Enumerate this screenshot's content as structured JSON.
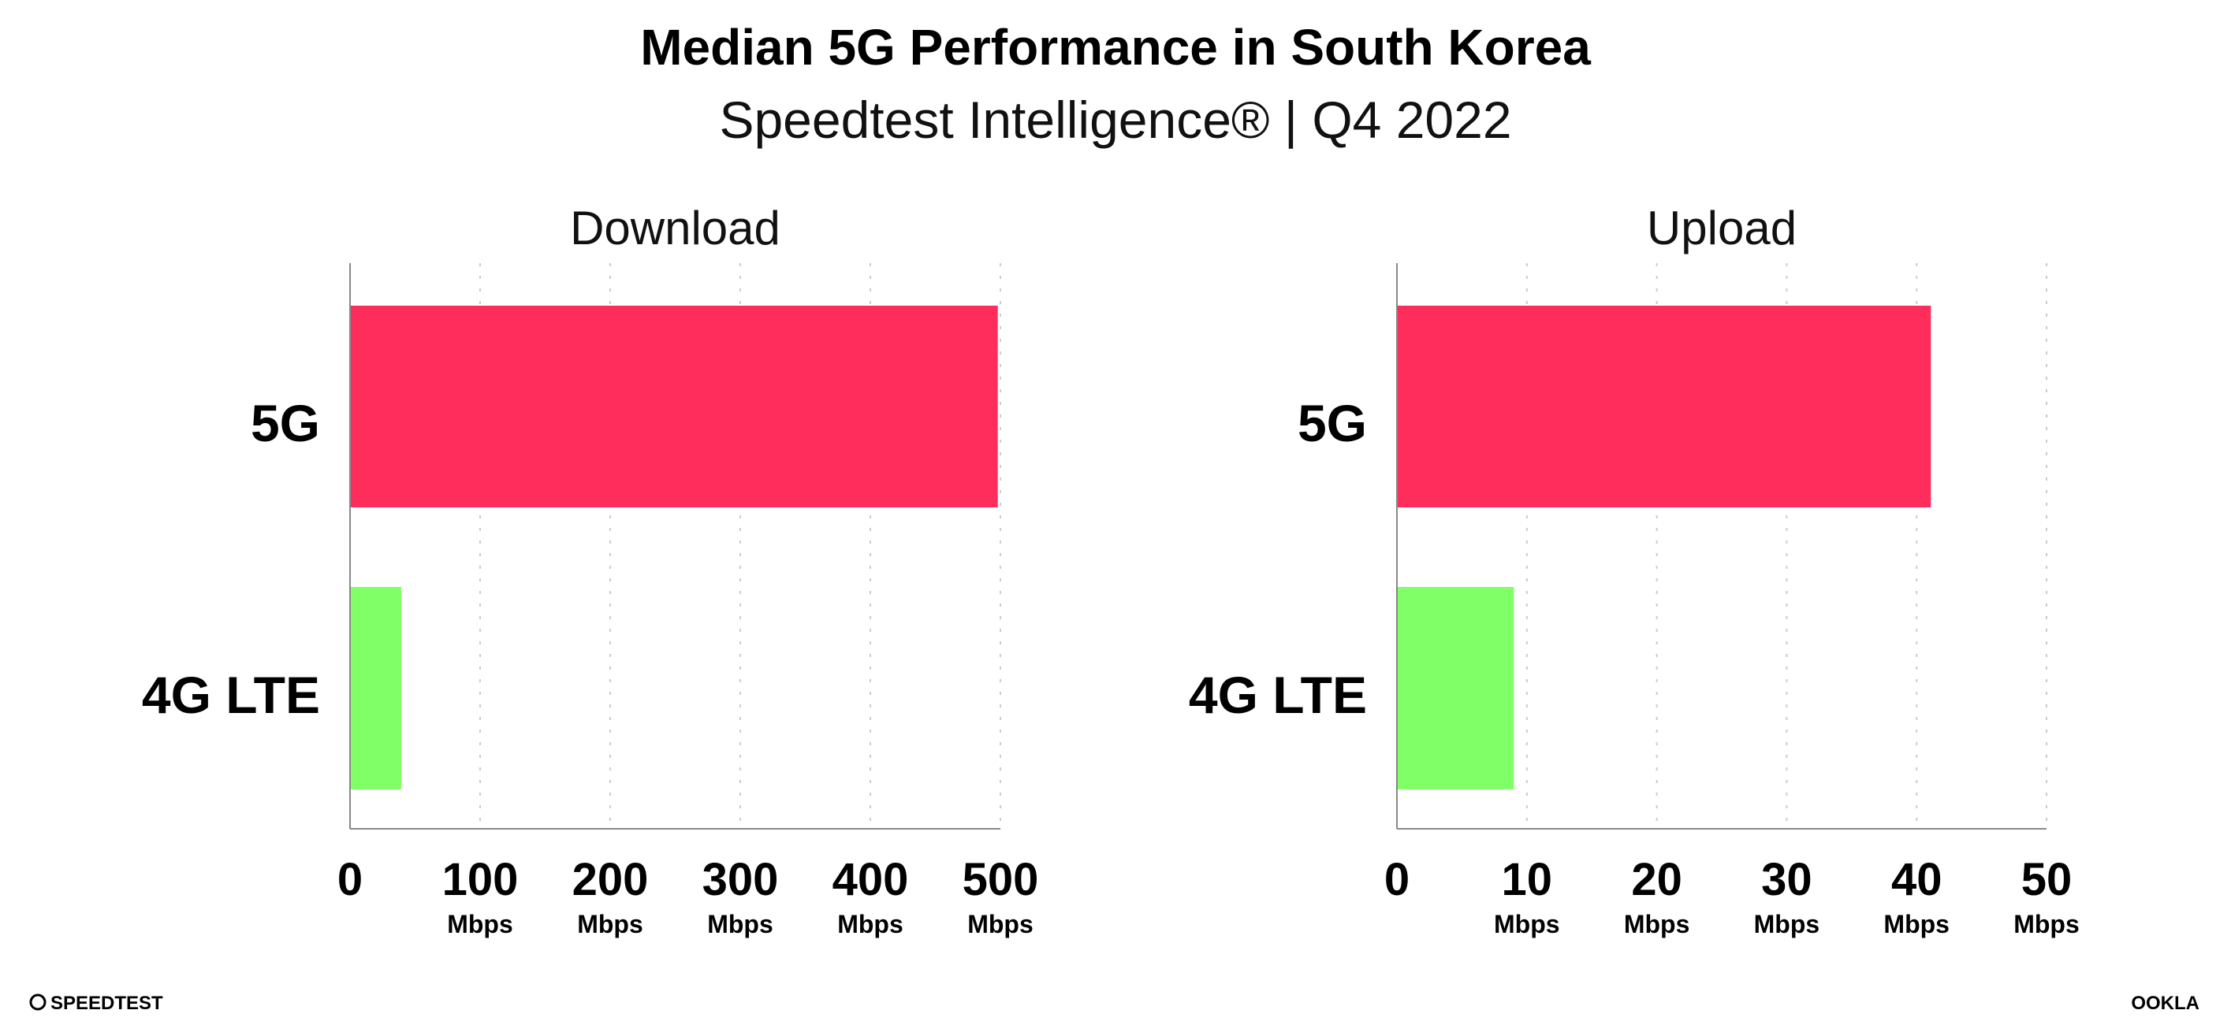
{
  "title": "Median 5G Performance in South Korea",
  "subtitle": "Speedtest Intelligence® | Q4 2022",
  "colors": {
    "5G": "#ff2d5c",
    "4G LTE": "#80ff66",
    "axis": "#888888",
    "grid": "#cccccc"
  },
  "footer": {
    "left_logo": "SPEEDTEST",
    "right_logo": "OOKLA"
  },
  "chart_data": [
    {
      "type": "bar",
      "orientation": "horizontal",
      "title": "Download",
      "categories": [
        "5G",
        "4G LTE"
      ],
      "values": [
        498,
        39.4
      ],
      "xlim": [
        0,
        500
      ],
      "ticks": [
        0,
        100,
        200,
        300,
        400,
        500
      ],
      "tick_labels": [
        "0",
        "100",
        "200",
        "300",
        "400",
        "500"
      ],
      "unit": "Mbps",
      "grid": true
    },
    {
      "type": "bar",
      "orientation": "horizontal",
      "title": "Upload",
      "categories": [
        "5G",
        "4G LTE"
      ],
      "values": [
        41.1,
        9.0
      ],
      "xlim": [
        0,
        50
      ],
      "ticks": [
        0,
        10,
        20,
        30,
        40,
        50
      ],
      "tick_labels": [
        "0",
        "10",
        "20",
        "30",
        "40",
        "50"
      ],
      "unit": "Mbps",
      "grid": true
    }
  ]
}
